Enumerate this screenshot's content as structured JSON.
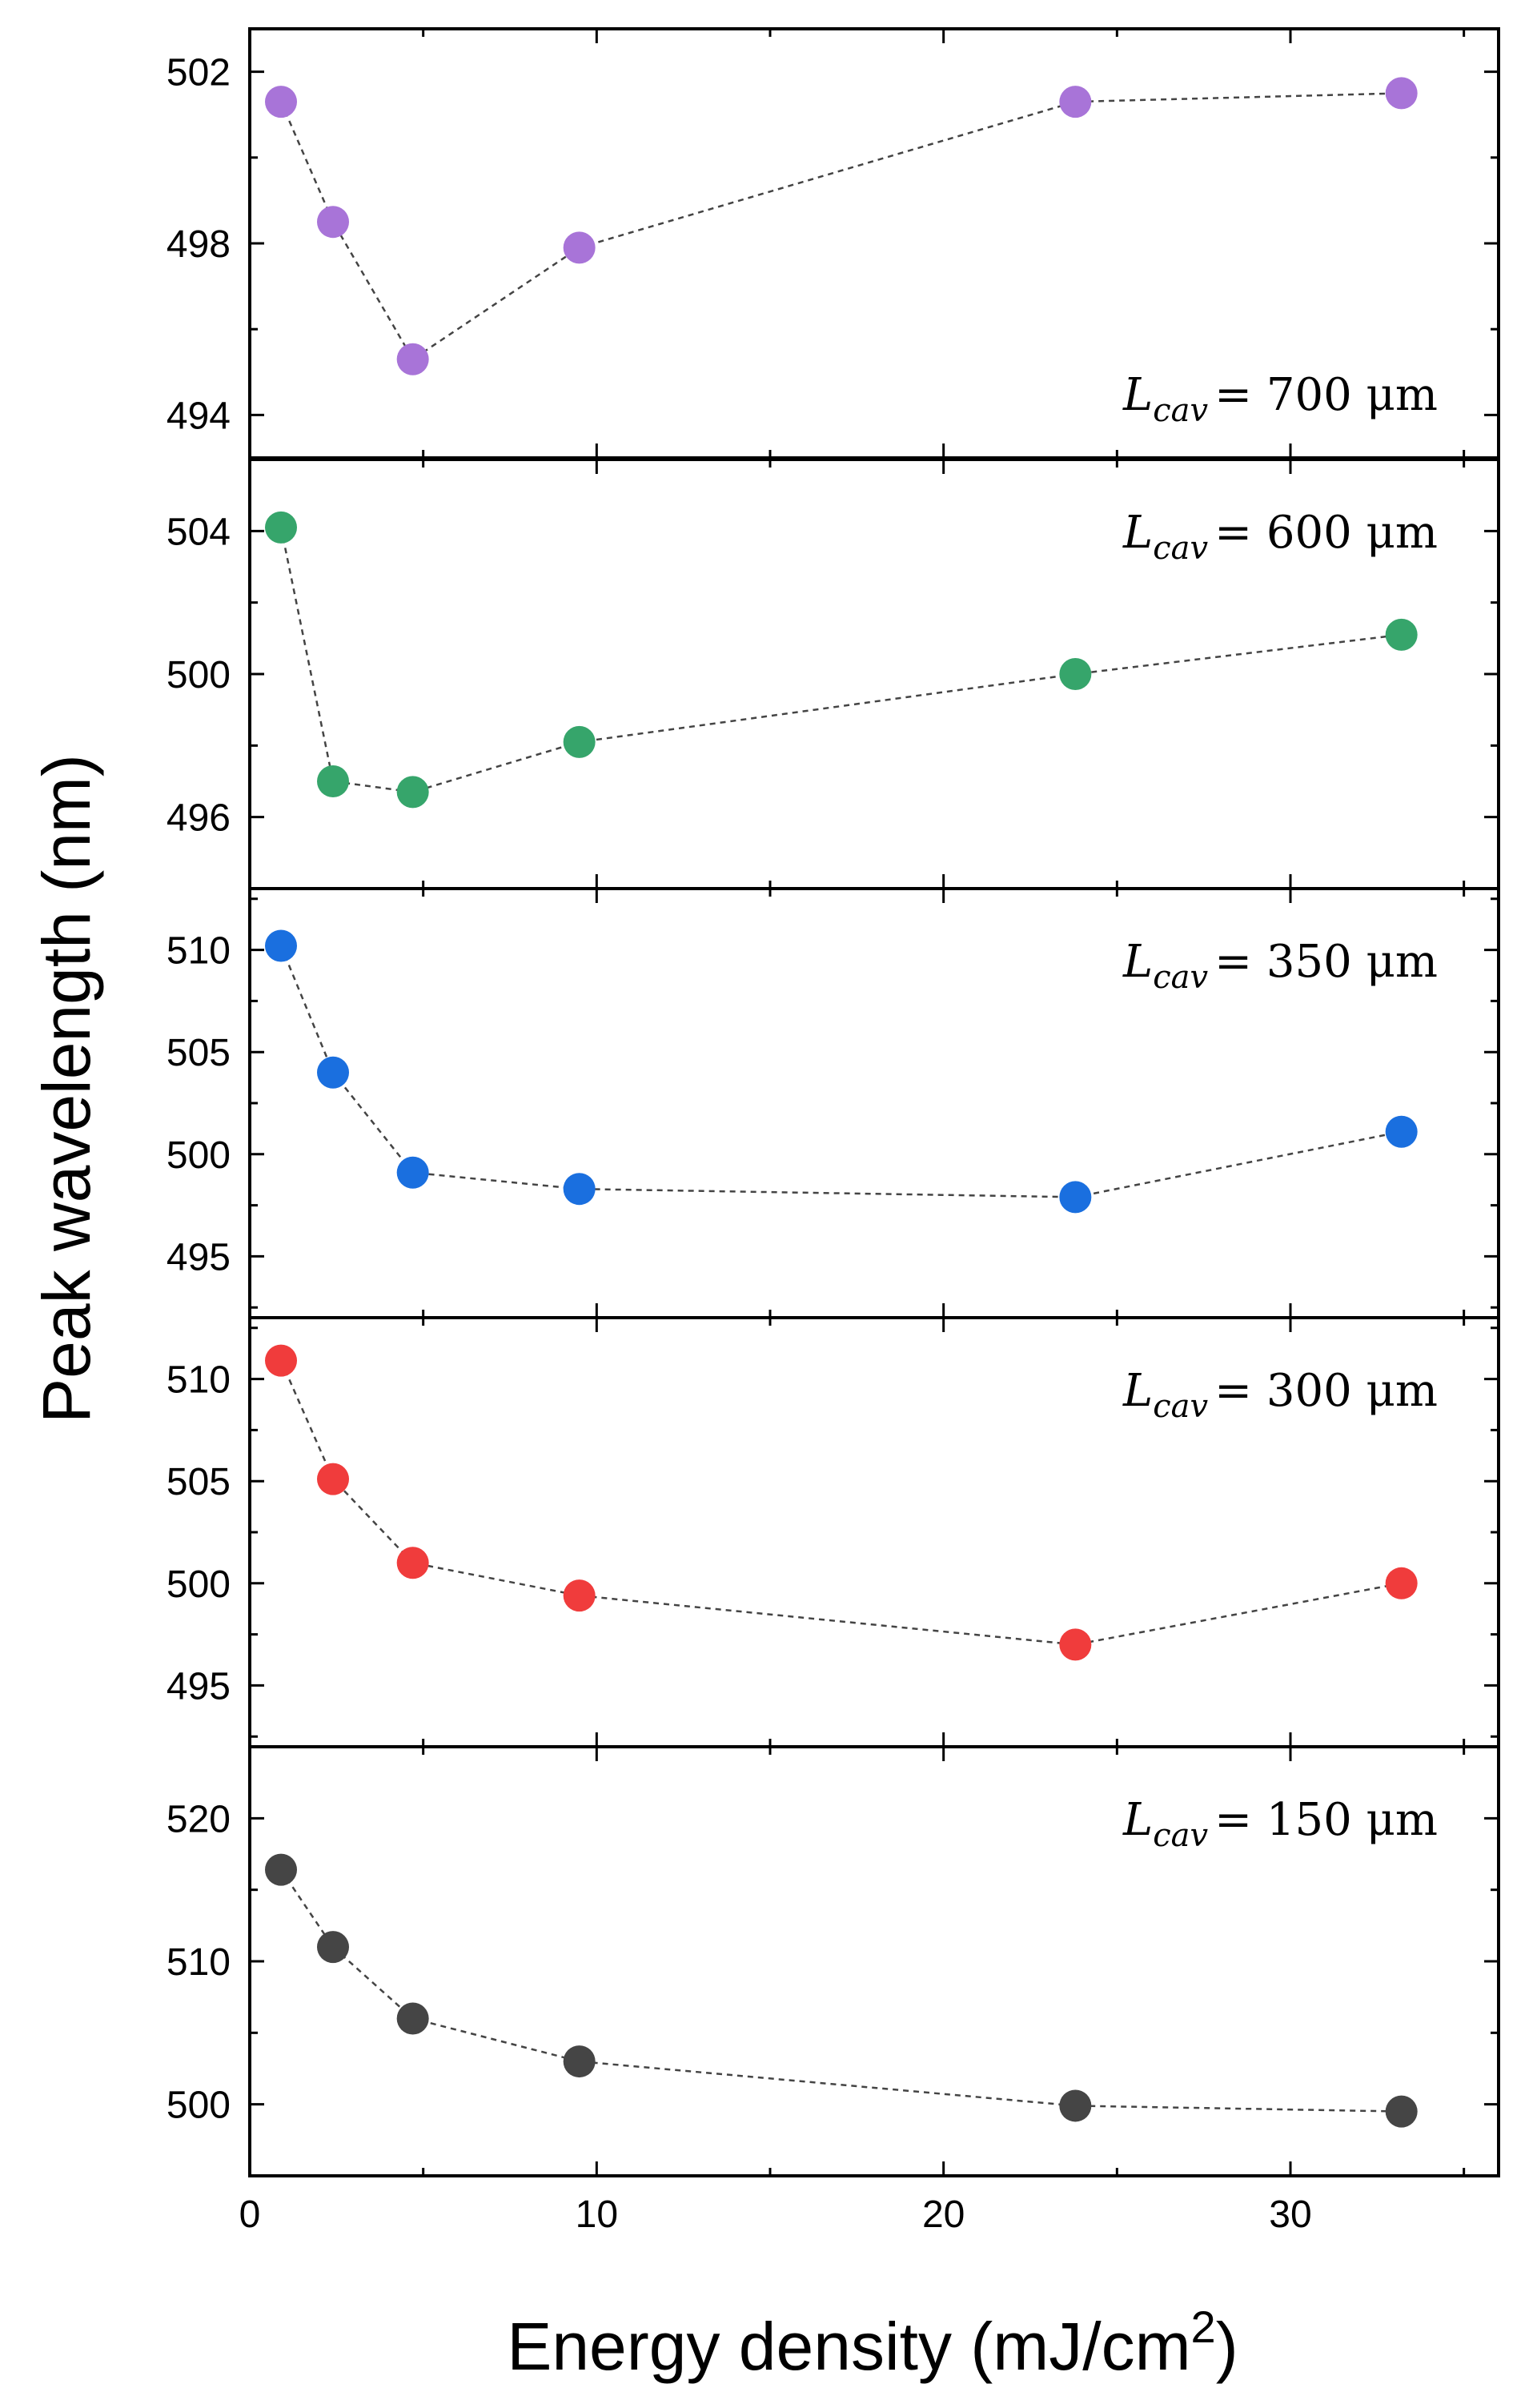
{
  "chart_data": {
    "type": "scatter",
    "ylabel": "Peak wavelength (nm)",
    "xlabel": "Energy density (mJ/cm",
    "xlabel_sup": "2",
    "xlabel_close": ")",
    "xlim": [
      0,
      36
    ],
    "xticks": [
      0,
      10,
      20,
      30
    ],
    "x": [
      0.9,
      2.4,
      4.7,
      9.5,
      23.8,
      33.2
    ],
    "series": [
      {
        "label": {
          "var": "L",
          "sub": "cav",
          "value": "= 700 μm"
        },
        "color": "#a874d8",
        "ylim": [
          493,
          503
        ],
        "yticks": [
          494,
          498,
          502
        ],
        "values": [
          501.3,
          498.5,
          495.3,
          497.9,
          501.3,
          501.5
        ]
      },
      {
        "label": {
          "var": "L",
          "sub": "cav",
          "value": "= 600 μm"
        },
        "color": "#36a56b",
        "ylim": [
          494,
          506
        ],
        "yticks": [
          496,
          500,
          504
        ],
        "values": [
          504.1,
          497.0,
          496.7,
          498.1,
          500.0,
          501.1
        ]
      },
      {
        "label": {
          "var": "L",
          "sub": "cav",
          "value": "= 350 μm"
        },
        "color": "#1a6fdf",
        "ylim": [
          492,
          513
        ],
        "yticks": [
          495,
          500,
          505,
          510
        ],
        "values": [
          510.2,
          504.0,
          499.1,
          498.3,
          497.9,
          501.1
        ]
      },
      {
        "label": {
          "var": "L",
          "sub": "cav",
          "value": "= 300 μm"
        },
        "color": "#f03c3c",
        "ylim": [
          492,
          513
        ],
        "yticks": [
          495,
          500,
          505,
          510
        ],
        "values": [
          510.9,
          505.1,
          501.0,
          499.4,
          497.0,
          500.0
        ]
      },
      {
        "label": {
          "var": "L",
          "sub": "cav",
          "value": "= 150 μm"
        },
        "color": "#454545",
        "ylim": [
          495,
          525
        ],
        "yticks": [
          500,
          510,
          520
        ],
        "values": [
          516.4,
          511.0,
          506.0,
          503.0,
          499.9,
          499.5
        ]
      }
    ]
  }
}
